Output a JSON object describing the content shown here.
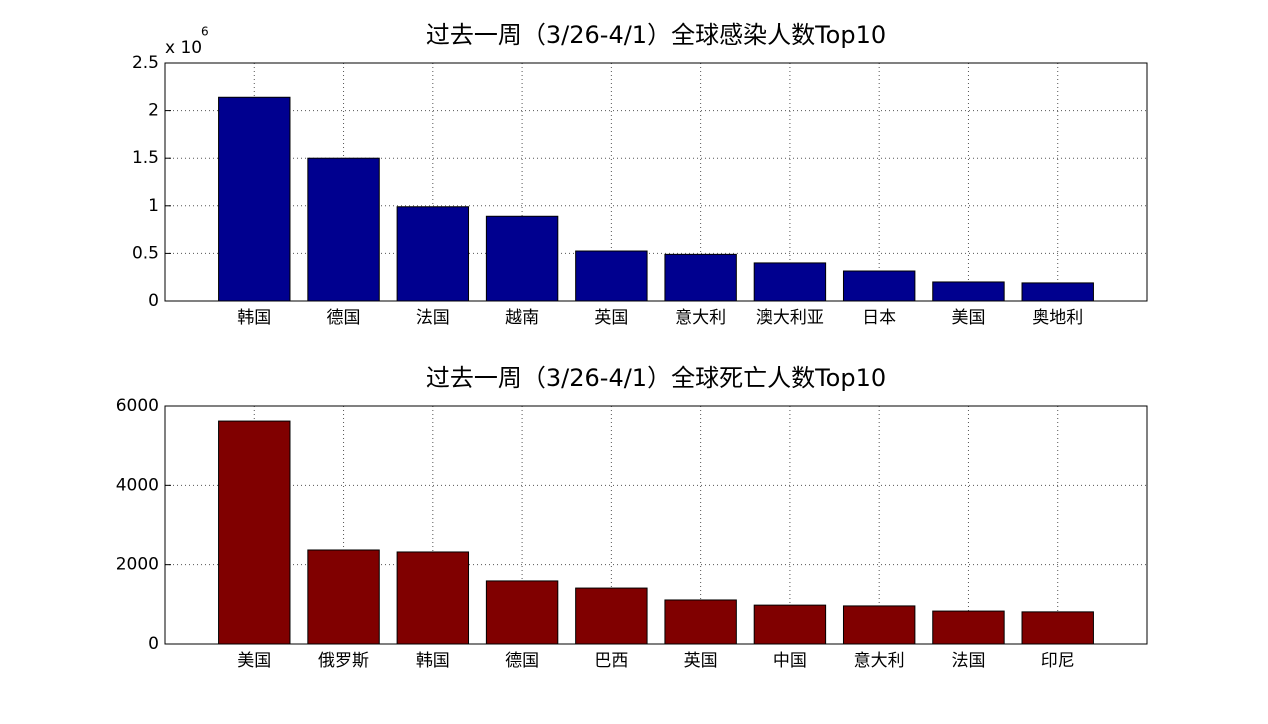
{
  "chart_data": [
    {
      "type": "bar",
      "title": "过去一周（3/26-4/1）全球感染人数Top10",
      "categories": [
        "韩国",
        "德国",
        "法国",
        "越南",
        "英国",
        "意大利",
        "澳大利亚",
        "日本",
        "美国",
        "奥地利"
      ],
      "values": [
        2140000,
        1500000,
        990000,
        890000,
        525000,
        490000,
        400000,
        315000,
        200000,
        190000
      ],
      "color": "#00008f",
      "ylim": [
        0,
        2500000
      ],
      "yticks": [
        {
          "value": 0,
          "label": "0"
        },
        {
          "value": 500000,
          "label": "0.5"
        },
        {
          "value": 1000000,
          "label": "1"
        },
        {
          "value": 1500000,
          "label": "1.5"
        },
        {
          "value": 2000000,
          "label": "2"
        },
        {
          "value": 2500000,
          "label": "2.5"
        }
      ],
      "y_multiplier": {
        "base": "x 10",
        "exponent": "6"
      },
      "grid": true
    },
    {
      "type": "bar",
      "title": "过去一周（3/26-4/1）全球死亡人数Top10",
      "categories": [
        "美国",
        "俄罗斯",
        "韩国",
        "德国",
        "巴西",
        "英国",
        "中国",
        "意大利",
        "法国",
        "印尼"
      ],
      "values": [
        5620,
        2370,
        2320,
        1590,
        1410,
        1110,
        980,
        960,
        830,
        810
      ],
      "color": "#800000",
      "ylim": [
        0,
        6000
      ],
      "yticks": [
        0,
        2000,
        4000,
        6000
      ],
      "grid": true
    }
  ]
}
